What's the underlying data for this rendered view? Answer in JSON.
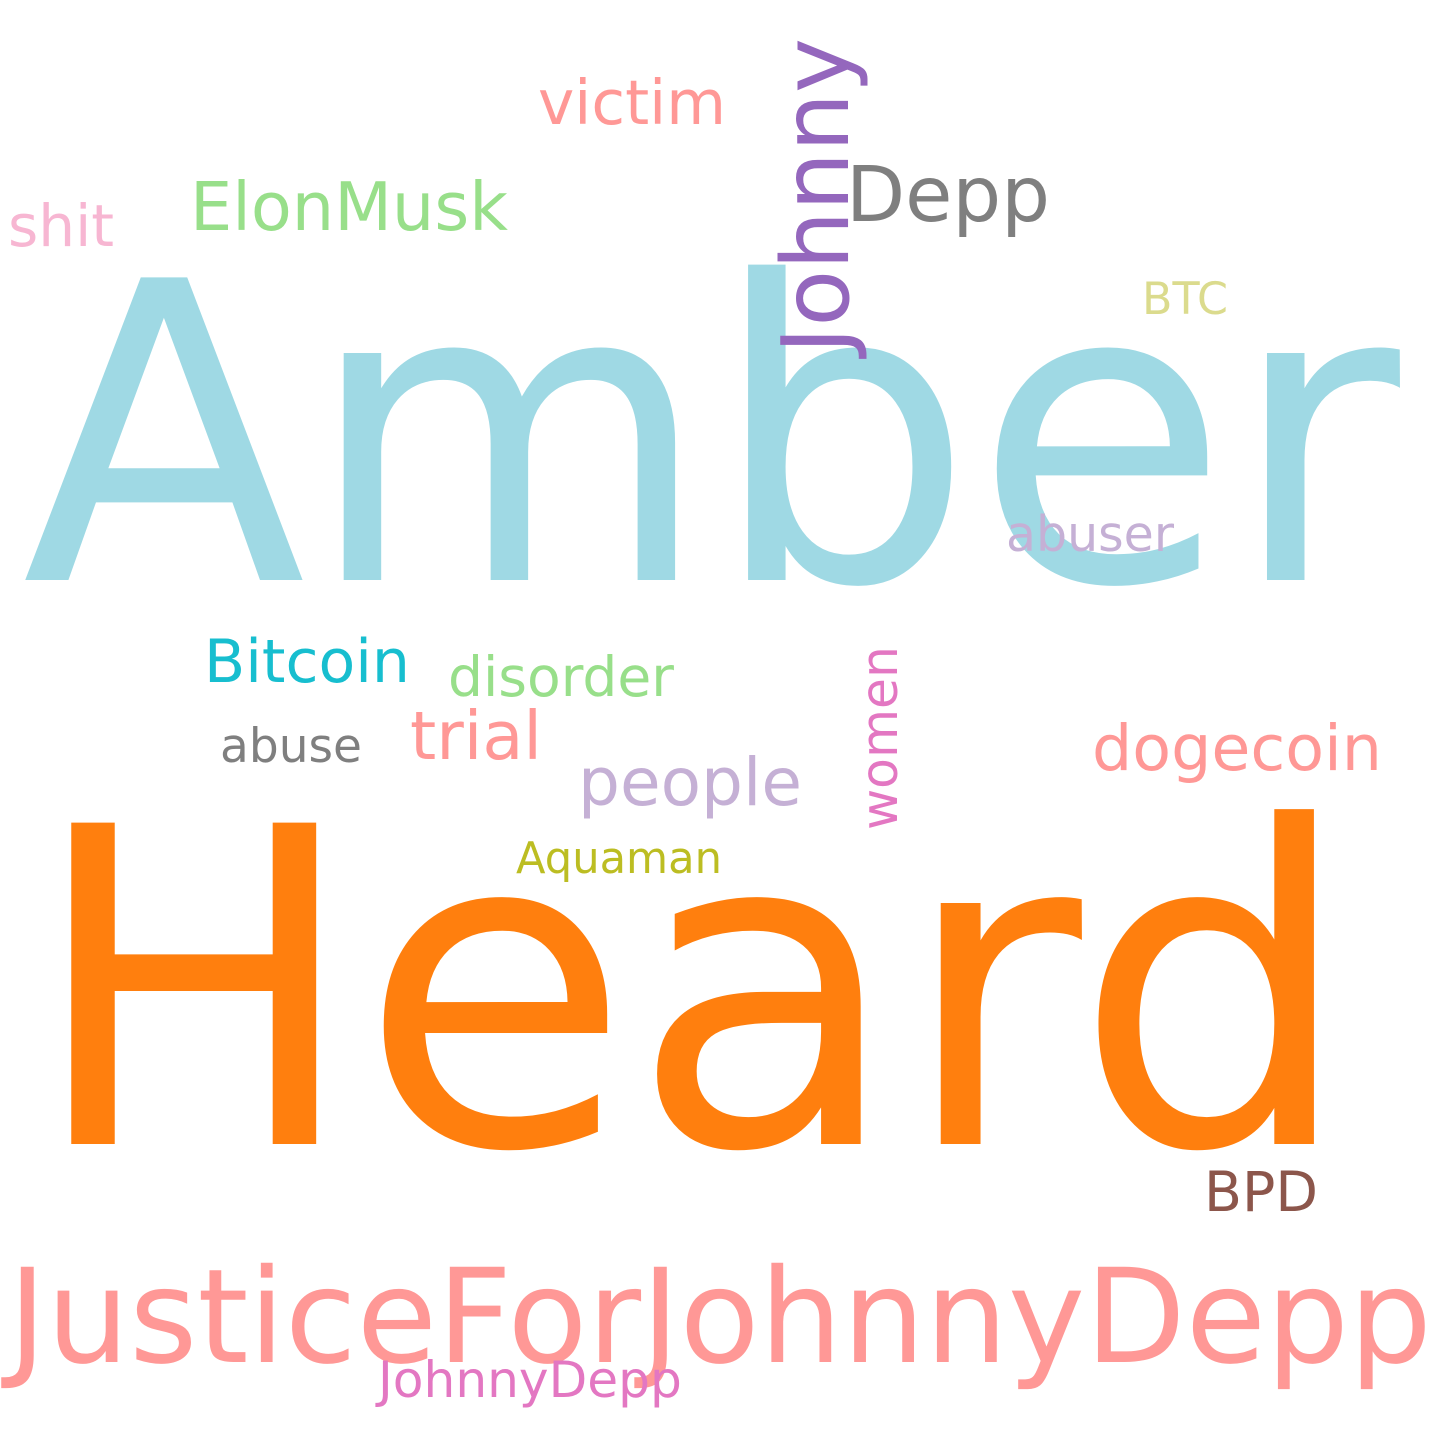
{
  "words": [
    {
      "text": "Amber",
      "color": "#9fd9e4"
    },
    {
      "text": "Heard",
      "color": "#ff7f0e"
    },
    {
      "text": "JusticeForJohnnyDepp",
      "color": "#ff9896"
    },
    {
      "text": "Johnny",
      "color": "#9467bd"
    },
    {
      "text": "Depp",
      "color": "#7f7f7f"
    },
    {
      "text": "ElonMusk",
      "color": "#98df8a"
    },
    {
      "text": "victim",
      "color": "#ff9896"
    },
    {
      "text": "shit",
      "color": "#f7b6d2"
    },
    {
      "text": "BTC",
      "color": "#dbdb8d"
    },
    {
      "text": "abuser",
      "color": "#c5b0d5"
    },
    {
      "text": "Bitcoin",
      "color": "#17becf"
    },
    {
      "text": "disorder",
      "color": "#98df8a"
    },
    {
      "text": "women",
      "color": "#e377c2"
    },
    {
      "text": "trial",
      "color": "#ff9896"
    },
    {
      "text": "abuse",
      "color": "#7f7f7f"
    },
    {
      "text": "people",
      "color": "#c5b0d5"
    },
    {
      "text": "dogecoin",
      "color": "#ff9896"
    },
    {
      "text": "Aquaman",
      "color": "#bcbd22"
    },
    {
      "text": "BPD",
      "color": "#8c564b"
    },
    {
      "text": "JohnnyDepp",
      "color": "#e377c2"
    }
  ]
}
